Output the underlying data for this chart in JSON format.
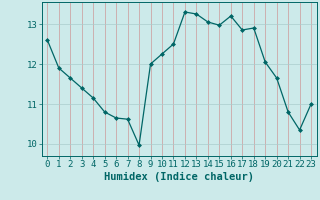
{
  "x": [
    0,
    1,
    2,
    3,
    4,
    5,
    6,
    7,
    8,
    9,
    10,
    11,
    12,
    13,
    14,
    15,
    16,
    17,
    18,
    19,
    20,
    21,
    22,
    23
  ],
  "y": [
    12.6,
    11.9,
    11.65,
    11.4,
    11.15,
    10.8,
    10.65,
    10.62,
    9.97,
    12.0,
    12.25,
    12.5,
    13.3,
    13.25,
    13.05,
    12.97,
    13.2,
    12.85,
    12.9,
    12.05,
    11.65,
    10.8,
    10.35,
    11.0
  ],
  "line_color": "#006666",
  "marker": "D",
  "marker_size": 2.0,
  "bg_color": "#cceaea",
  "grid_color": "#b0d8d8",
  "xlabel": "Humidex (Indice chaleur)",
  "ylim": [
    9.7,
    13.55
  ],
  "xlim": [
    -0.5,
    23.5
  ],
  "yticks": [
    10,
    11,
    12,
    13
  ],
  "xticks": [
    0,
    1,
    2,
    3,
    4,
    5,
    6,
    7,
    8,
    9,
    10,
    11,
    12,
    13,
    14,
    15,
    16,
    17,
    18,
    19,
    20,
    21,
    22,
    23
  ],
  "tick_label_fontsize": 6.5,
  "xlabel_fontsize": 7.5,
  "tick_color": "#006666",
  "label_color": "#006666"
}
